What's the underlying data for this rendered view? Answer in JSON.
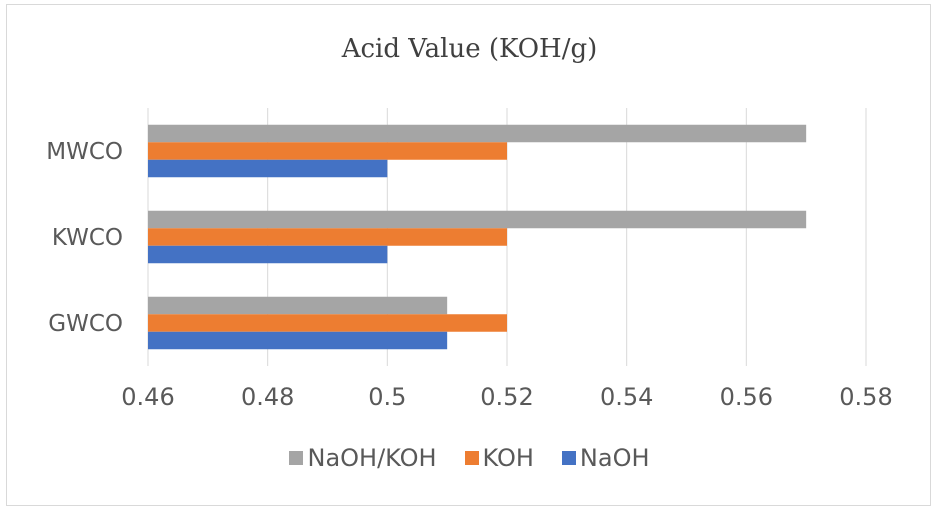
{
  "chart_data": {
    "type": "bar",
    "orientation": "horizontal",
    "title": "Acid Value (KOH/g)",
    "xlabel": "",
    "ylabel": "",
    "categories": [
      "GWCO",
      "KWCO",
      "MWCO"
    ],
    "series": [
      {
        "name": "NaOH",
        "color": "#4472c4",
        "values": [
          0.51,
          0.5,
          0.5
        ]
      },
      {
        "name": "KOH",
        "color": "#ed7d31",
        "values": [
          0.52,
          0.52,
          0.52
        ]
      },
      {
        "name": "NaOH/KOH",
        "color": "#a5a5a5",
        "values": [
          0.51,
          0.57,
          0.57
        ]
      }
    ],
    "xlim": [
      0.46,
      0.58
    ],
    "xticks": [
      "0.46",
      "0.48",
      "0.5",
      "0.52",
      "0.54",
      "0.56",
      "0.58"
    ],
    "grid": true,
    "legend_position": "bottom",
    "legend_order": [
      "NaOH/KOH",
      "KOH",
      "NaOH"
    ]
  }
}
